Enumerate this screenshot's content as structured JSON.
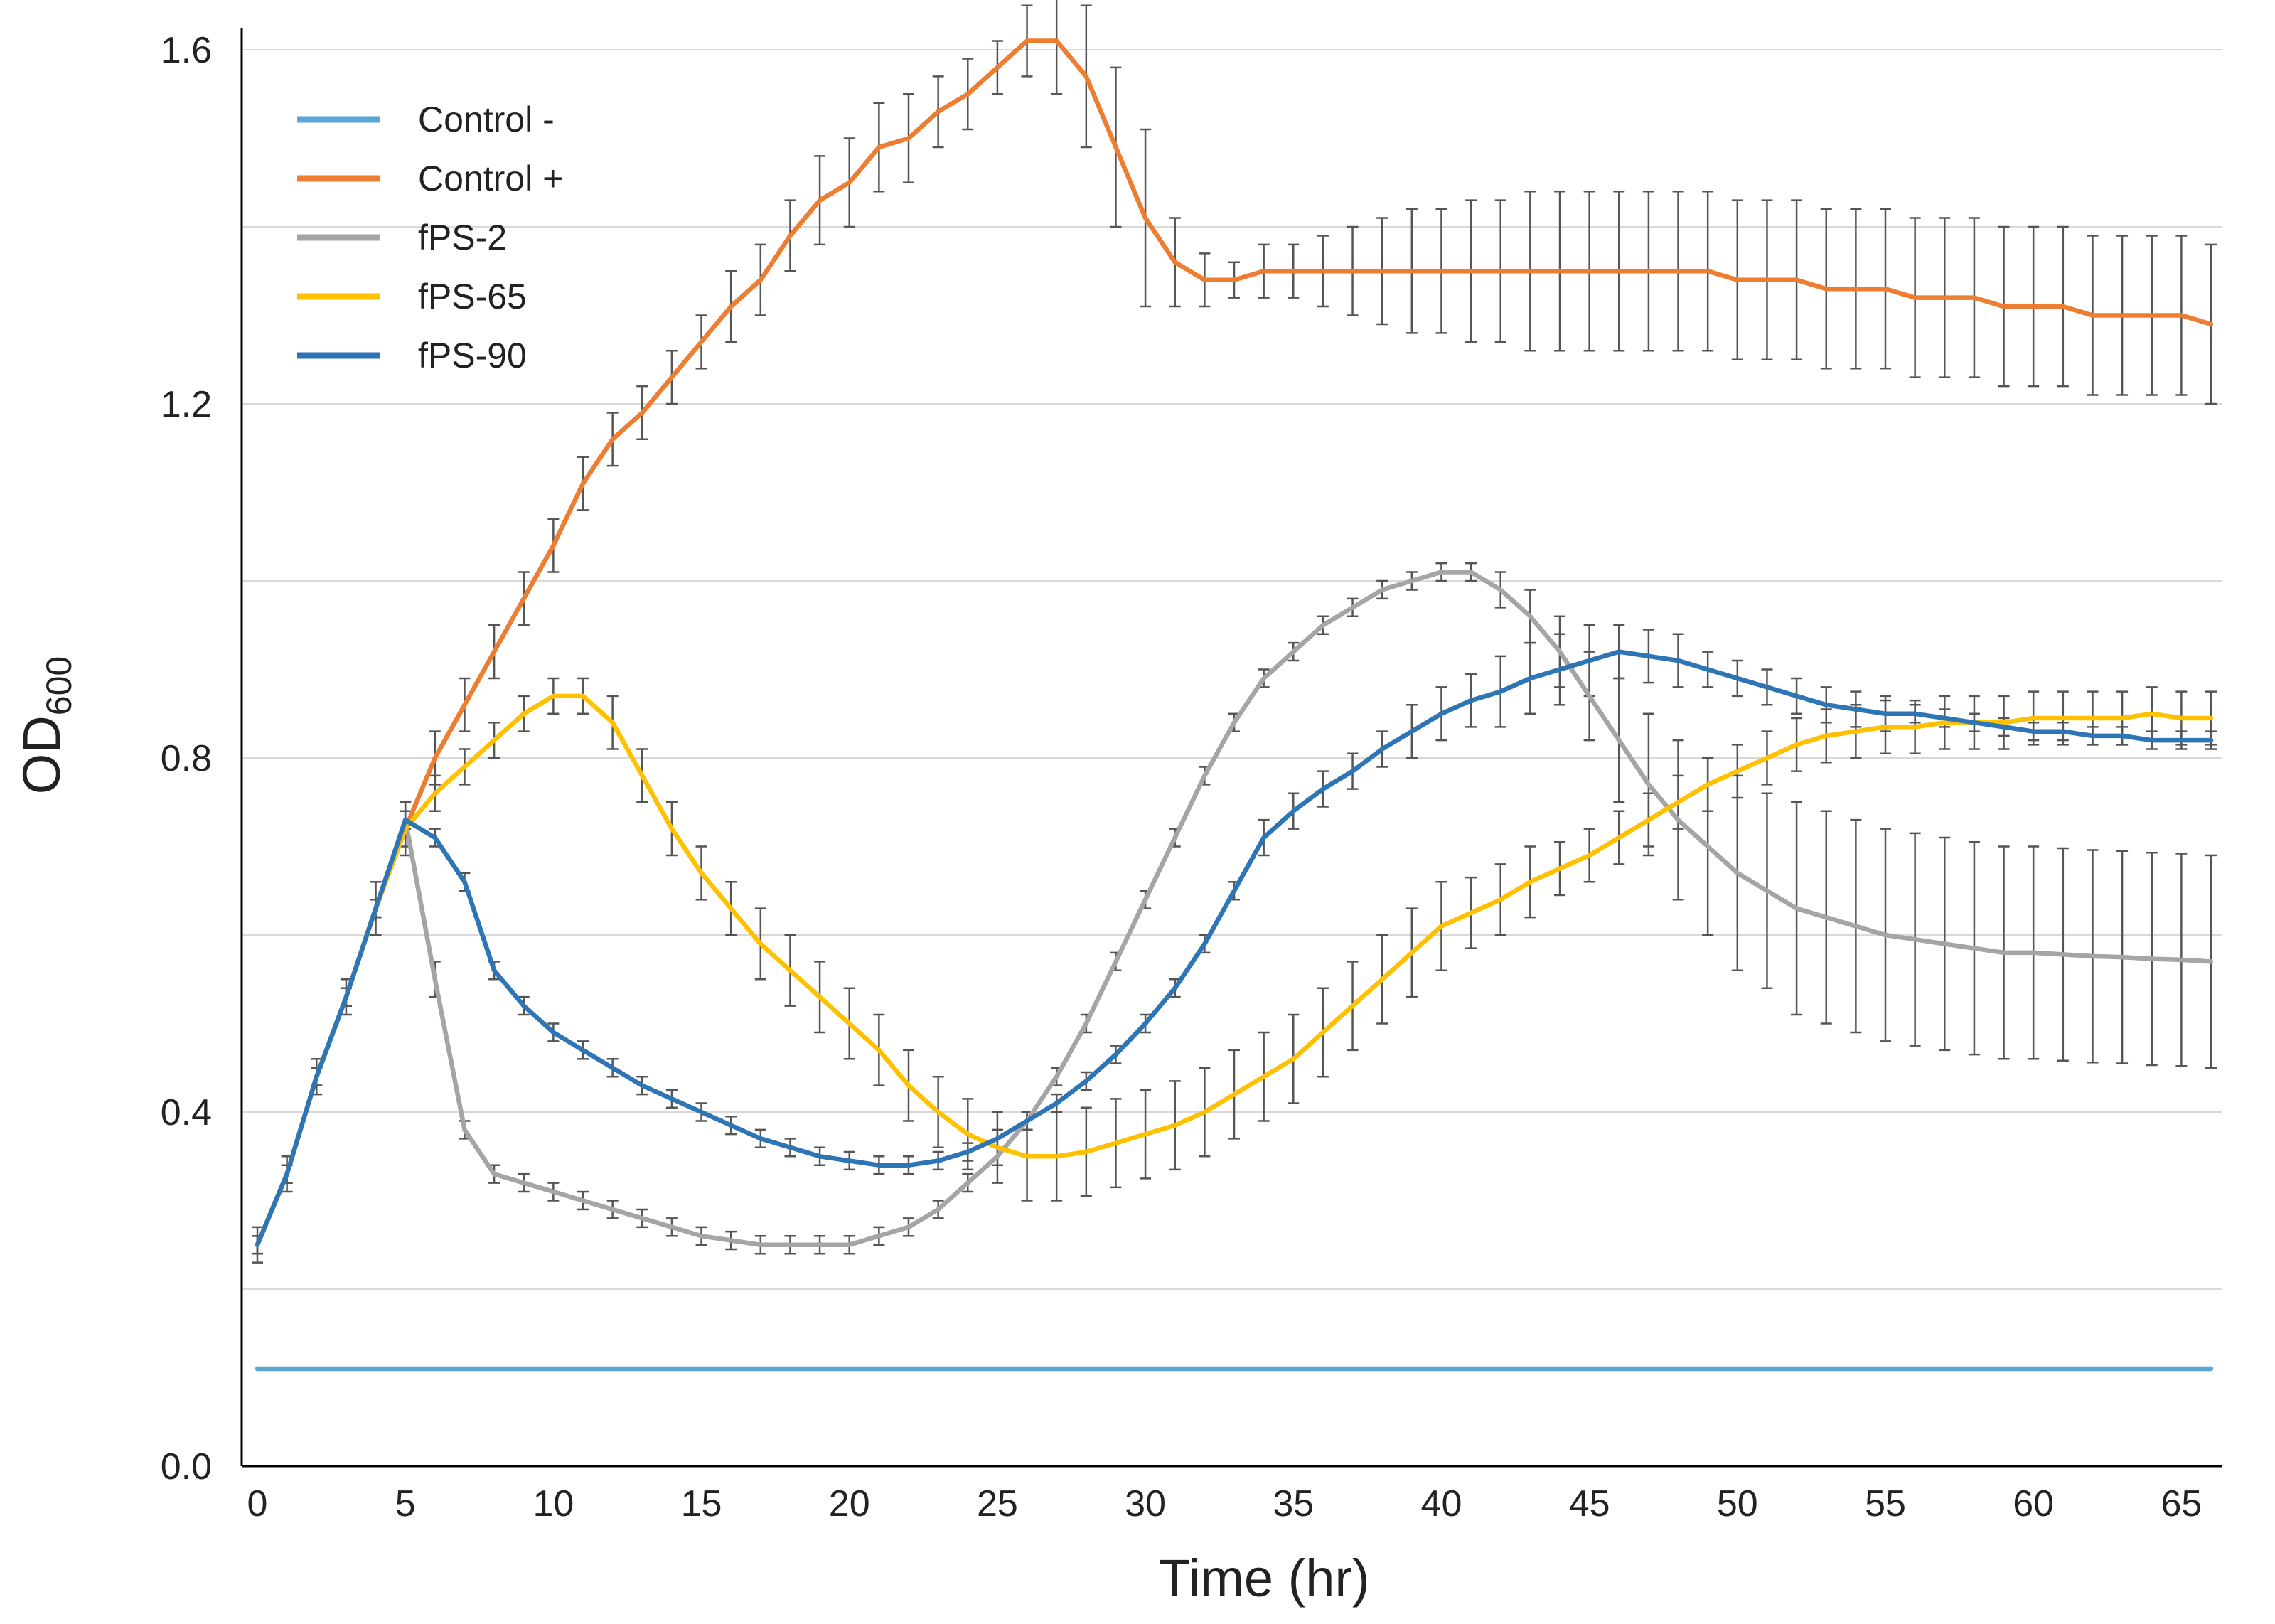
{
  "chart_data": {
    "type": "line",
    "xlabel": "Time (hr)",
    "ylabel": "OD",
    "ylabel_sub": "600",
    "xlim": [
      0,
      66
    ],
    "ylim": [
      0,
      1.6
    ],
    "xticks": [
      0,
      5,
      10,
      15,
      20,
      25,
      30,
      35,
      40,
      45,
      50,
      55,
      60,
      65
    ],
    "yticks": [
      0,
      0.4,
      0.8,
      1.2,
      1.6
    ],
    "ytick_labels": [
      "0.0",
      "0.4",
      "0.8",
      "1.2",
      "1.6"
    ],
    "gridlines_y": [
      0.2,
      0.4,
      0.6,
      0.8,
      1.0,
      1.2,
      1.4,
      1.6
    ],
    "grid": "horizontal",
    "legend_position": "top-left",
    "x": [
      0,
      1,
      2,
      3,
      4,
      5,
      6,
      7,
      8,
      9,
      10,
      11,
      12,
      13,
      14,
      15,
      16,
      17,
      18,
      19,
      20,
      21,
      22,
      23,
      24,
      25,
      26,
      27,
      28,
      29,
      30,
      31,
      32,
      33,
      34,
      35,
      36,
      37,
      38,
      39,
      40,
      41,
      42,
      43,
      44,
      45,
      46,
      47,
      48,
      49,
      50,
      51,
      52,
      53,
      54,
      55,
      56,
      57,
      58,
      59,
      60,
      61,
      62,
      63,
      64,
      65,
      66
    ],
    "series": [
      {
        "name": "Control -",
        "color": "#5aa5d6",
        "values": [
          0.11,
          0.11,
          0.11,
          0.11,
          0.11,
          0.11,
          0.11,
          0.11,
          0.11,
          0.11,
          0.11,
          0.11,
          0.11,
          0.11,
          0.11,
          0.11,
          0.11,
          0.11,
          0.11,
          0.11,
          0.11,
          0.11,
          0.11,
          0.11,
          0.11,
          0.11,
          0.11,
          0.11,
          0.11,
          0.11,
          0.11,
          0.11,
          0.11,
          0.11,
          0.11,
          0.11,
          0.11,
          0.11,
          0.11,
          0.11,
          0.11,
          0.11,
          0.11,
          0.11,
          0.11,
          0.11,
          0.11,
          0.11,
          0.11,
          0.11,
          0.11,
          0.11,
          0.11,
          0.11,
          0.11,
          0.11,
          0.11,
          0.11,
          0.11,
          0.11,
          0.11,
          0.11,
          0.11,
          0.11,
          0.11,
          0.11,
          0.11
        ],
        "errors": []
      },
      {
        "name": "Control +",
        "color": "#ed7d31",
        "values": [
          0.25,
          0.33,
          0.44,
          0.53,
          0.63,
          0.72,
          0.8,
          0.86,
          0.92,
          0.98,
          1.04,
          1.11,
          1.16,
          1.19,
          1.23,
          1.27,
          1.31,
          1.34,
          1.39,
          1.43,
          1.45,
          1.49,
          1.5,
          1.53,
          1.55,
          1.58,
          1.61,
          1.61,
          1.57,
          1.49,
          1.41,
          1.36,
          1.34,
          1.34,
          1.35,
          1.35,
          1.35,
          1.35,
          1.35,
          1.35,
          1.35,
          1.35,
          1.35,
          1.35,
          1.35,
          1.35,
          1.35,
          1.35,
          1.35,
          1.35,
          1.34,
          1.34,
          1.34,
          1.33,
          1.33,
          1.33,
          1.32,
          1.32,
          1.32,
          1.31,
          1.31,
          1.31,
          1.3,
          1.3,
          1.3,
          1.3,
          1.29
        ],
        "errors": [
          0.02,
          0.02,
          0.02,
          0.02,
          0.03,
          0.03,
          0.03,
          0.03,
          0.03,
          0.03,
          0.03,
          0.03,
          0.03,
          0.03,
          0.03,
          0.03,
          0.04,
          0.04,
          0.04,
          0.05,
          0.05,
          0.05,
          0.05,
          0.04,
          0.04,
          0.03,
          0.04,
          0.06,
          0.08,
          0.09,
          0.1,
          0.05,
          0.03,
          0.02,
          0.03,
          0.03,
          0.04,
          0.05,
          0.06,
          0.07,
          0.07,
          0.08,
          0.08,
          0.09,
          0.09,
          0.09,
          0.09,
          0.09,
          0.09,
          0.09,
          0.09,
          0.09,
          0.09,
          0.09,
          0.09,
          0.09,
          0.09,
          0.09,
          0.09,
          0.09,
          0.09,
          0.09,
          0.09,
          0.09,
          0.09,
          0.09,
          0.09
        ]
      },
      {
        "name": "fPS-2",
        "color": "#a5a5a5",
        "values": [
          0.25,
          0.33,
          0.44,
          0.53,
          0.63,
          0.73,
          0.55,
          0.38,
          0.33,
          0.32,
          0.31,
          0.3,
          0.29,
          0.28,
          0.27,
          0.26,
          0.255,
          0.25,
          0.25,
          0.25,
          0.25,
          0.26,
          0.27,
          0.29,
          0.32,
          0.35,
          0.39,
          0.44,
          0.5,
          0.57,
          0.64,
          0.71,
          0.78,
          0.84,
          0.89,
          0.92,
          0.95,
          0.97,
          0.99,
          1.0,
          1.01,
          1.01,
          0.99,
          0.96,
          0.92,
          0.87,
          0.82,
          0.77,
          0.73,
          0.7,
          0.67,
          0.65,
          0.63,
          0.62,
          0.61,
          0.6,
          0.595,
          0.59,
          0.585,
          0.58,
          0.58,
          0.578,
          0.576,
          0.575,
          0.573,
          0.572,
          0.57
        ],
        "errors": [
          0.01,
          0.01,
          0.01,
          0.01,
          0.01,
          0.02,
          0.02,
          0.01,
          0.01,
          0.01,
          0.01,
          0.01,
          0.01,
          0.01,
          0.01,
          0.01,
          0.01,
          0.01,
          0.01,
          0.01,
          0.01,
          0.01,
          0.01,
          0.01,
          0.01,
          0.01,
          0.01,
          0.01,
          0.01,
          0.01,
          0.01,
          0.01,
          0.01,
          0.01,
          0.01,
          0.01,
          0.01,
          0.01,
          0.01,
          0.01,
          0.01,
          0.01,
          0.02,
          0.03,
          0.04,
          0.05,
          0.07,
          0.08,
          0.09,
          0.1,
          0.11,
          0.11,
          0.12,
          0.12,
          0.12,
          0.12,
          0.12,
          0.12,
          0.12,
          0.12,
          0.12,
          0.12,
          0.12,
          0.12,
          0.12,
          0.12,
          0.12
        ]
      },
      {
        "name": "fPS-65",
        "color": "#ffc000",
        "values": [
          0.25,
          0.33,
          0.44,
          0.53,
          0.63,
          0.72,
          0.76,
          0.79,
          0.82,
          0.85,
          0.87,
          0.87,
          0.84,
          0.78,
          0.72,
          0.67,
          0.63,
          0.59,
          0.56,
          0.53,
          0.5,
          0.47,
          0.43,
          0.4,
          0.375,
          0.36,
          0.35,
          0.35,
          0.355,
          0.365,
          0.375,
          0.385,
          0.4,
          0.42,
          0.44,
          0.46,
          0.49,
          0.52,
          0.55,
          0.58,
          0.61,
          0.625,
          0.64,
          0.66,
          0.675,
          0.69,
          0.71,
          0.73,
          0.75,
          0.77,
          0.785,
          0.8,
          0.815,
          0.825,
          0.83,
          0.835,
          0.835,
          0.84,
          0.84,
          0.84,
          0.845,
          0.845,
          0.845,
          0.845,
          0.85,
          0.845,
          0.845
        ],
        "errors": [
          0.01,
          0.01,
          0.01,
          0.01,
          0.01,
          0.02,
          0.02,
          0.02,
          0.02,
          0.02,
          0.02,
          0.02,
          0.03,
          0.03,
          0.03,
          0.03,
          0.03,
          0.04,
          0.04,
          0.04,
          0.04,
          0.04,
          0.04,
          0.04,
          0.04,
          0.04,
          0.05,
          0.05,
          0.05,
          0.05,
          0.05,
          0.05,
          0.05,
          0.05,
          0.05,
          0.05,
          0.05,
          0.05,
          0.05,
          0.05,
          0.05,
          0.04,
          0.04,
          0.04,
          0.03,
          0.03,
          0.03,
          0.03,
          0.03,
          0.03,
          0.03,
          0.03,
          0.03,
          0.03,
          0.03,
          0.03,
          0.03,
          0.03,
          0.03,
          0.03,
          0.03,
          0.03,
          0.03,
          0.03,
          0.03,
          0.03,
          0.03
        ]
      },
      {
        "name": "fPS-90",
        "color": "#2e75b6",
        "values": [
          0.25,
          0.33,
          0.44,
          0.53,
          0.63,
          0.73,
          0.71,
          0.66,
          0.56,
          0.52,
          0.49,
          0.47,
          0.45,
          0.43,
          0.415,
          0.4,
          0.385,
          0.37,
          0.36,
          0.35,
          0.345,
          0.34,
          0.34,
          0.345,
          0.355,
          0.37,
          0.39,
          0.41,
          0.435,
          0.465,
          0.5,
          0.54,
          0.59,
          0.65,
          0.71,
          0.74,
          0.765,
          0.785,
          0.81,
          0.83,
          0.85,
          0.865,
          0.875,
          0.89,
          0.9,
          0.91,
          0.92,
          0.915,
          0.91,
          0.9,
          0.89,
          0.88,
          0.87,
          0.86,
          0.855,
          0.85,
          0.85,
          0.845,
          0.84,
          0.835,
          0.83,
          0.83,
          0.825,
          0.825,
          0.82,
          0.82,
          0.82
        ],
        "errors": [
          0.01,
          0.01,
          0.01,
          0.01,
          0.01,
          0.01,
          0.01,
          0.01,
          0.01,
          0.01,
          0.01,
          0.01,
          0.01,
          0.01,
          0.01,
          0.01,
          0.01,
          0.01,
          0.01,
          0.01,
          0.01,
          0.01,
          0.01,
          0.01,
          0.01,
          0.01,
          0.01,
          0.01,
          0.01,
          0.01,
          0.01,
          0.01,
          0.01,
          0.01,
          0.02,
          0.02,
          0.02,
          0.02,
          0.02,
          0.03,
          0.03,
          0.03,
          0.04,
          0.04,
          0.04,
          0.04,
          0.03,
          0.03,
          0.03,
          0.02,
          0.02,
          0.02,
          0.02,
          0.02,
          0.02,
          0.02,
          0.01,
          0.01,
          0.01,
          0.01,
          0.01,
          0.01,
          0.01,
          0.01,
          0.01,
          0.01,
          0.01
        ]
      }
    ]
  }
}
